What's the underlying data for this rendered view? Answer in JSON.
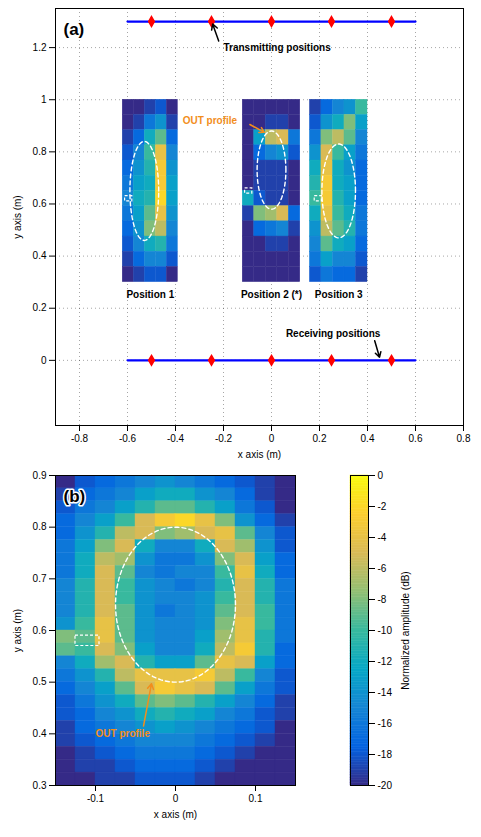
{
  "chart_data": [
    {
      "panel": "(a)",
      "type": "scatter",
      "xlabel": "x axis (m)",
      "ylabel": "y axis (m)",
      "xlim": [
        -0.9,
        0.8
      ],
      "ylim": [
        -0.25,
        1.35
      ],
      "xticks": [
        -0.8,
        -0.6,
        -0.4,
        -0.2,
        0,
        0.2,
        0.4,
        0.6,
        0.8
      ],
      "yticks": [
        0,
        0.2,
        0.4,
        0.6,
        0.8,
        1,
        1.2
      ],
      "grid": true,
      "cell_range": [
        -20,
        0
      ],
      "series": [
        {
          "type": "line",
          "color": "#0000ff",
          "x": [
            -0.6,
            0.6
          ],
          "values": [
            1.3,
            1.3
          ]
        },
        {
          "type": "scatter",
          "marker": "diamond",
          "color": "#ff0000",
          "x": [
            -0.5,
            -0.25,
            0,
            0.25,
            0.5
          ],
          "values": [
            1.3,
            1.3,
            1.3,
            1.3,
            1.3
          ]
        },
        {
          "type": "line",
          "color": "#0000ff",
          "x": [
            -0.6,
            0.6
          ],
          "values": [
            0,
            0
          ]
        },
        {
          "type": "scatter",
          "marker": "diamond",
          "color": "#ff0000",
          "x": [
            -0.5,
            -0.25,
            0,
            0.25,
            0.5
          ],
          "values": [
            0,
            0,
            0,
            0,
            0
          ]
        }
      ],
      "images": [
        {
          "label": "Position 1",
          "x": [
            -0.62,
            -0.39
          ],
          "y": [
            0.3,
            1.0
          ],
          "cells": [
            [
              -20,
              -20,
              -19,
              -18,
              -20
            ],
            [
              -20,
              -19,
              -16,
              -14,
              -19
            ],
            [
              -19,
              -17,
              -12,
              -9,
              -17
            ],
            [
              -18,
              -15,
              -10,
              -4,
              -15
            ],
            [
              -17,
              -14,
              -11,
              -3,
              -14
            ],
            [
              -16,
              -13,
              -12,
              -3,
              -13
            ],
            [
              -15,
              -12,
              -11,
              -2,
              -13
            ],
            [
              -16,
              -13,
              -9,
              -4,
              -14
            ],
            [
              -17,
              -14,
              -8,
              -6,
              -15
            ],
            [
              -18,
              -15,
              -12,
              -11,
              -16
            ],
            [
              -19,
              -17,
              -15,
              -15,
              -18
            ],
            [
              -20,
              -19,
              -18,
              -18,
              -20
            ]
          ],
          "outline": {
            "cx": -0.53,
            "cy": 0.65,
            "rx": 0.06,
            "ry": 0.19
          },
          "box": {
            "x": [
              -0.61,
              -0.58
            ],
            "y": [
              0.61,
              0.63
            ]
          }
        },
        {
          "label": "Position 2 (*)",
          "x": [
            -0.12,
            0.12
          ],
          "y": [
            0.3,
            1.0
          ],
          "cells": [
            [
              -20,
              -20,
              -20,
              -20,
              -20
            ],
            [
              -20,
              -20,
              -19,
              -19,
              -20
            ],
            [
              -20,
              -13,
              -6,
              -5,
              -16
            ],
            [
              -20,
              -17,
              -15,
              -14,
              -18
            ],
            [
              -20,
              -19,
              -19,
              -19,
              -20
            ],
            [
              -20,
              -19,
              -19,
              -19,
              -20
            ],
            [
              -12,
              -18,
              -19,
              -19,
              -20
            ],
            [
              -19,
              -8,
              -7,
              -5,
              -17
            ],
            [
              -20,
              -17,
              -16,
              -15,
              -19
            ],
            [
              -20,
              -20,
              -19,
              -19,
              -20
            ],
            [
              -20,
              -20,
              -20,
              -20,
              -20
            ],
            [
              -20,
              -20,
              -20,
              -20,
              -20
            ]
          ],
          "outline": {
            "cx": 0,
            "cy": 0.73,
            "rx": 0.06,
            "ry": 0.15
          },
          "box": {
            "x": [
              -0.11,
              -0.08
            ],
            "y": [
              0.64,
              0.66
            ]
          }
        },
        {
          "label": "Position 3",
          "x": [
            0.16,
            0.4
          ],
          "y": [
            0.3,
            1.0
          ],
          "cells": [
            [
              -19,
              -17,
              -15,
              -14,
              -10
            ],
            [
              -18,
              -14,
              -12,
              -8,
              -13
            ],
            [
              -16,
              -8,
              -6,
              -9,
              -15
            ],
            [
              -14,
              -5,
              -10,
              -13,
              -16
            ],
            [
              -12,
              -4,
              -12,
              -14,
              -17
            ],
            [
              -11,
              -3,
              -12,
              -13,
              -17
            ],
            [
              -10,
              -3,
              -11,
              -13,
              -17
            ],
            [
              -12,
              -4,
              -10,
              -12,
              -16
            ],
            [
              -14,
              -6,
              -9,
              -11,
              -16
            ],
            [
              -15,
              -9,
              -12,
              -13,
              -17
            ],
            [
              -16,
              -13,
              -15,
              -15,
              -18
            ],
            [
              -18,
              -16,
              -17,
              -17,
              -19
            ]
          ],
          "outline": {
            "cx": 0.28,
            "cy": 0.65,
            "rx": 0.07,
            "ry": 0.18
          },
          "box": {
            "x": [
              0.18,
              0.21
            ],
            "y": [
              0.61,
              0.63
            ]
          }
        }
      ],
      "annotations": [
        {
          "text": "Transmitting positions",
          "color": "#000000",
          "x": -0.2,
          "y": 1.2,
          "arrow": [
            -0.22,
            1.225,
            -0.245,
            1.29
          ]
        },
        {
          "text": "OUT profile",
          "color": "#f28e1c",
          "x": -0.37,
          "y": 0.92,
          "arrow": [
            -0.09,
            0.905,
            -0.03,
            0.875
          ]
        },
        {
          "text": "Receiving positions",
          "color": "#000000",
          "x": 0.06,
          "y": 0.1,
          "arrow": [
            0.43,
            0.075,
            0.45,
            0.012
          ]
        }
      ]
    },
    {
      "panel": "(b)",
      "type": "heatmap",
      "xlabel": "x axis (m)",
      "ylabel": "y axis (m)",
      "xlim": [
        -0.15,
        0.15
      ],
      "ylim": [
        0.3,
        0.9
      ],
      "xticks": [
        -0.1,
        0,
        0.1
      ],
      "yticks": [
        0.3,
        0.4,
        0.5,
        0.6,
        0.7,
        0.8,
        0.9
      ],
      "grid": false,
      "cells": [
        [
          -20,
          -18,
          -17,
          -16,
          -15,
          -14,
          -15,
          -16,
          -17,
          -18,
          -19,
          -20
        ],
        [
          -19,
          -17,
          -16,
          -15,
          -13,
          -12,
          -12,
          -14,
          -15,
          -17,
          -19,
          -20
        ],
        [
          -18,
          -16,
          -15,
          -13,
          -11,
          -9,
          -9,
          -11,
          -13,
          -16,
          -18,
          -20
        ],
        [
          -17,
          -15,
          -13,
          -10,
          -5,
          -3,
          -2,
          -4,
          -8,
          -14,
          -17,
          -19
        ],
        [
          -17,
          -14,
          -11,
          -6,
          -5,
          -8,
          -7,
          -5,
          -4,
          -9,
          -15,
          -18
        ],
        [
          -16,
          -13,
          -8,
          -5,
          -12,
          -15,
          -15,
          -12,
          -5,
          -7,
          -14,
          -18
        ],
        [
          -16,
          -12,
          -6,
          -7,
          -14,
          -16,
          -16,
          -14,
          -8,
          -5,
          -13,
          -17
        ],
        [
          -16,
          -12,
          -5,
          -9,
          -15,
          -16,
          -15,
          -15,
          -10,
          -4,
          -12,
          -17
        ],
        [
          -15,
          -11,
          -5,
          -10,
          -14,
          -15,
          -16,
          -15,
          -11,
          -5,
          -11,
          -16
        ],
        [
          -15,
          -11,
          -5,
          -10,
          -14,
          -15,
          -15,
          -14,
          -10,
          -5,
          -11,
          -16
        ],
        [
          -15,
          -11,
          -5,
          -9,
          -14,
          -16,
          -15,
          -14,
          -9,
          -5,
          -10,
          -16
        ],
        [
          -14,
          -10,
          -4,
          -9,
          -14,
          -15,
          -15,
          -14,
          -8,
          -4,
          -10,
          -16
        ],
        [
          -8,
          -9,
          -4,
          -9,
          -14,
          -15,
          -15,
          -13,
          -7,
          -4,
          -11,
          -16
        ],
        [
          -9,
          -10,
          -5,
          -8,
          -13,
          -15,
          -15,
          -12,
          -6,
          -3,
          -11,
          -17
        ],
        [
          -15,
          -12,
          -7,
          -5,
          -11,
          -13,
          -13,
          -9,
          -4,
          -5,
          -13,
          -17
        ],
        [
          -16,
          -14,
          -11,
          -6,
          -4,
          -4,
          -4,
          -3,
          -6,
          -10,
          -15,
          -18
        ],
        [
          -17,
          -15,
          -13,
          -9,
          -5,
          -3,
          -4,
          -5,
          -9,
          -13,
          -16,
          -18
        ],
        [
          -18,
          -16,
          -14,
          -12,
          -9,
          -8,
          -9,
          -11,
          -13,
          -15,
          -17,
          -19
        ],
        [
          -18,
          -17,
          -15,
          -14,
          -12,
          -11,
          -12,
          -13,
          -15,
          -16,
          -18,
          -19
        ],
        [
          -19,
          -17,
          -16,
          -15,
          -14,
          -13,
          -14,
          -15,
          -16,
          -17,
          -18,
          -20
        ],
        [
          -19,
          -18,
          -17,
          -16,
          -15,
          -15,
          -15,
          -16,
          -17,
          -18,
          -19,
          -20
        ],
        [
          -20,
          -19,
          -18,
          -17,
          -16,
          -16,
          -16,
          -17,
          -18,
          -19,
          -20,
          -20
        ],
        [
          -20,
          -19,
          -19,
          -18,
          -17,
          -17,
          -17,
          -18,
          -19,
          -20,
          -20,
          -20
        ],
        [
          -20,
          -20,
          -19,
          -19,
          -18,
          -18,
          -18,
          -19,
          -20,
          -20,
          -20,
          -20
        ]
      ],
      "colorbar": {
        "label": "Normalized amplitude (dB)",
        "range": [
          -20,
          0
        ],
        "ticks": [
          0,
          -2,
          -4,
          -6,
          -8,
          -10,
          -12,
          -14,
          -16,
          -18,
          -20
        ]
      },
      "outline": {
        "cx": 0,
        "cy": 0.65,
        "rx": 0.075,
        "ry": 0.15
      },
      "box": {
        "x": [
          -0.125,
          -0.095
        ],
        "y": [
          0.57,
          0.59
        ]
      },
      "annotations": [
        {
          "text": "OUT profile",
          "color": "#f28e1c",
          "x": -0.1,
          "y": 0.4,
          "arrow": [
            -0.04,
            0.415,
            -0.03,
            0.497
          ]
        }
      ]
    }
  ]
}
